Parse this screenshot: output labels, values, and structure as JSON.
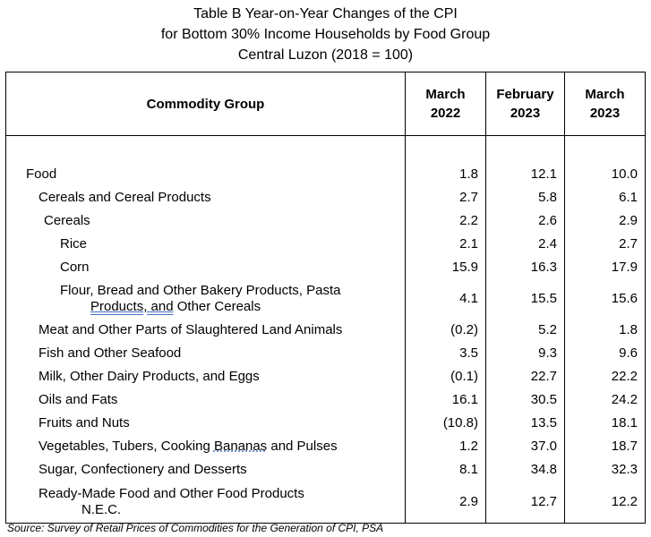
{
  "title": {
    "line1": "Table B Year-on-Year Changes of the CPI",
    "line2": "for Bottom 30% Income Households by Food Group",
    "line3": "Central Luzon (2018 = 100)"
  },
  "table": {
    "headers": {
      "commodity": "Commodity Group",
      "col1_line1": "March",
      "col1_line2": "2022",
      "col2_line1": "February",
      "col2_line2": "2023",
      "col3_line1": "March",
      "col3_line2": "2023"
    },
    "rows": [
      {
        "label": "Food",
        "v1": "1.8",
        "v2": "12.1",
        "v3": "10.0"
      },
      {
        "label": "Cereals and Cereal Products",
        "v1": "2.7",
        "v2": "5.8",
        "v3": "6.1"
      },
      {
        "label": "Cereals",
        "v1": "2.2",
        "v2": "2.6",
        "v3": "2.9"
      },
      {
        "label": "Rice",
        "v1": "2.1",
        "v2": "2.4",
        "v3": "2.7"
      },
      {
        "label": "Corn",
        "v1": "15.9",
        "v2": "16.3",
        "v3": "17.9"
      },
      {
        "label_line1": "Flour, Bread and Other Bakery Products, Pasta",
        "label_line2_a": "Products,  and",
        "label_line2_b": " Other Cereals",
        "v1": "4.1",
        "v2": "15.5",
        "v3": "15.6"
      },
      {
        "label": "Meat and Other Parts of Slaughtered Land Animals",
        "v1": "(0.2)",
        "v2": "5.2",
        "v3": "1.8"
      },
      {
        "label": "Fish and Other Seafood",
        "v1": "3.5",
        "v2": "9.3",
        "v3": "9.6"
      },
      {
        "label": "Milk, Other Dairy Products, and Eggs",
        "v1": "(0.1)",
        "v2": "22.7",
        "v3": "22.2"
      },
      {
        "label": "Oils and Fats",
        "v1": "16.1",
        "v2": "30.5",
        "v3": "24.2"
      },
      {
        "label": "Fruits and Nuts",
        "v1": "(10.8)",
        "v2": "13.5",
        "v3": "18.1"
      },
      {
        "label_a": "Vegetables, Tubers, Cooking ",
        "label_b": "Bananas",
        "label_c": " and Pulses",
        "v1": "1.2",
        "v2": "37.0",
        "v3": "18.7"
      },
      {
        "label": "Sugar, Confectionery and Desserts",
        "v1": "8.1",
        "v2": "34.8",
        "v3": "32.3"
      },
      {
        "label_line1": "Ready-Made Food and Other Food Products",
        "label_line2": "N.E.C.",
        "v1": "2.9",
        "v2": "12.7",
        "v3": "12.2"
      }
    ]
  },
  "source": "Source: Survey of Retail Prices of Commodities for the Generation of CPI, PSA"
}
